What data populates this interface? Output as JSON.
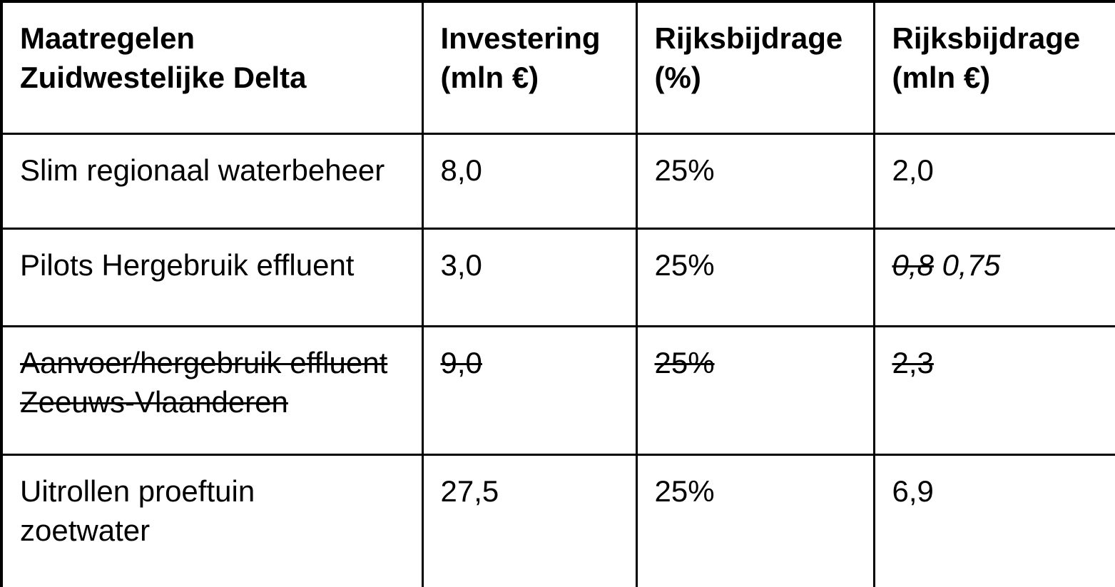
{
  "colors": {
    "text": "#000000",
    "border": "#000000",
    "background": "#ffffff"
  },
  "table": {
    "columns": [
      {
        "label": "Maatregelen Zuidwestelijke Delta",
        "lines": [
          "Maatregelen",
          "Zuidwestelijke Delta"
        ]
      },
      {
        "label": "Investering (mln €)",
        "lines": [
          "Investering",
          "(mln €)"
        ]
      },
      {
        "label": "Rijksbijdrage (%)",
        "lines": [
          "Rijksbijdrage",
          "(%)"
        ]
      },
      {
        "label": "Rijksbijdrage (mln €)",
        "lines": [
          "Rijksbijdrage",
          "(mln €)"
        ]
      }
    ],
    "rows": [
      {
        "cells": [
          [
            {
              "text": "Slim regionaal waterbeheer",
              "strike": false,
              "italic": false
            }
          ],
          [
            {
              "text": "8,0",
              "strike": false,
              "italic": false
            }
          ],
          [
            {
              "text": "25%",
              "strike": false,
              "italic": false
            }
          ],
          [
            {
              "text": "2,0",
              "strike": false,
              "italic": false
            }
          ]
        ]
      },
      {
        "cells": [
          [
            {
              "text": "Pilots Hergebruik effluent",
              "strike": false,
              "italic": false
            }
          ],
          [
            {
              "text": "3,0",
              "strike": false,
              "italic": false
            }
          ],
          [
            {
              "text": "25%",
              "strike": false,
              "italic": false
            }
          ],
          [
            {
              "text": "0,8",
              "strike": true,
              "italic": true
            },
            {
              "text": "0,75",
              "strike": false,
              "italic": true
            }
          ]
        ]
      },
      {
        "cells": [
          [
            {
              "text": "Aanvoer/hergebruik effluent\nZeeuws-Vlaanderen",
              "strike": true,
              "italic": false
            }
          ],
          [
            {
              "text": "9,0",
              "strike": true,
              "italic": false
            }
          ],
          [
            {
              "text": "25%",
              "strike": true,
              "italic": false
            }
          ],
          [
            {
              "text": "2,3",
              "strike": true,
              "italic": false
            }
          ]
        ]
      },
      {
        "cells": [
          [
            {
              "text": "Uitrollen proeftuin\nzoetwater",
              "strike": false,
              "italic": false
            }
          ],
          [
            {
              "text": "27,5",
              "strike": false,
              "italic": false
            }
          ],
          [
            {
              "text": "25%",
              "strike": false,
              "italic": false
            }
          ],
          [
            {
              "text": "6,9",
              "strike": false,
              "italic": false
            }
          ]
        ]
      }
    ]
  }
}
